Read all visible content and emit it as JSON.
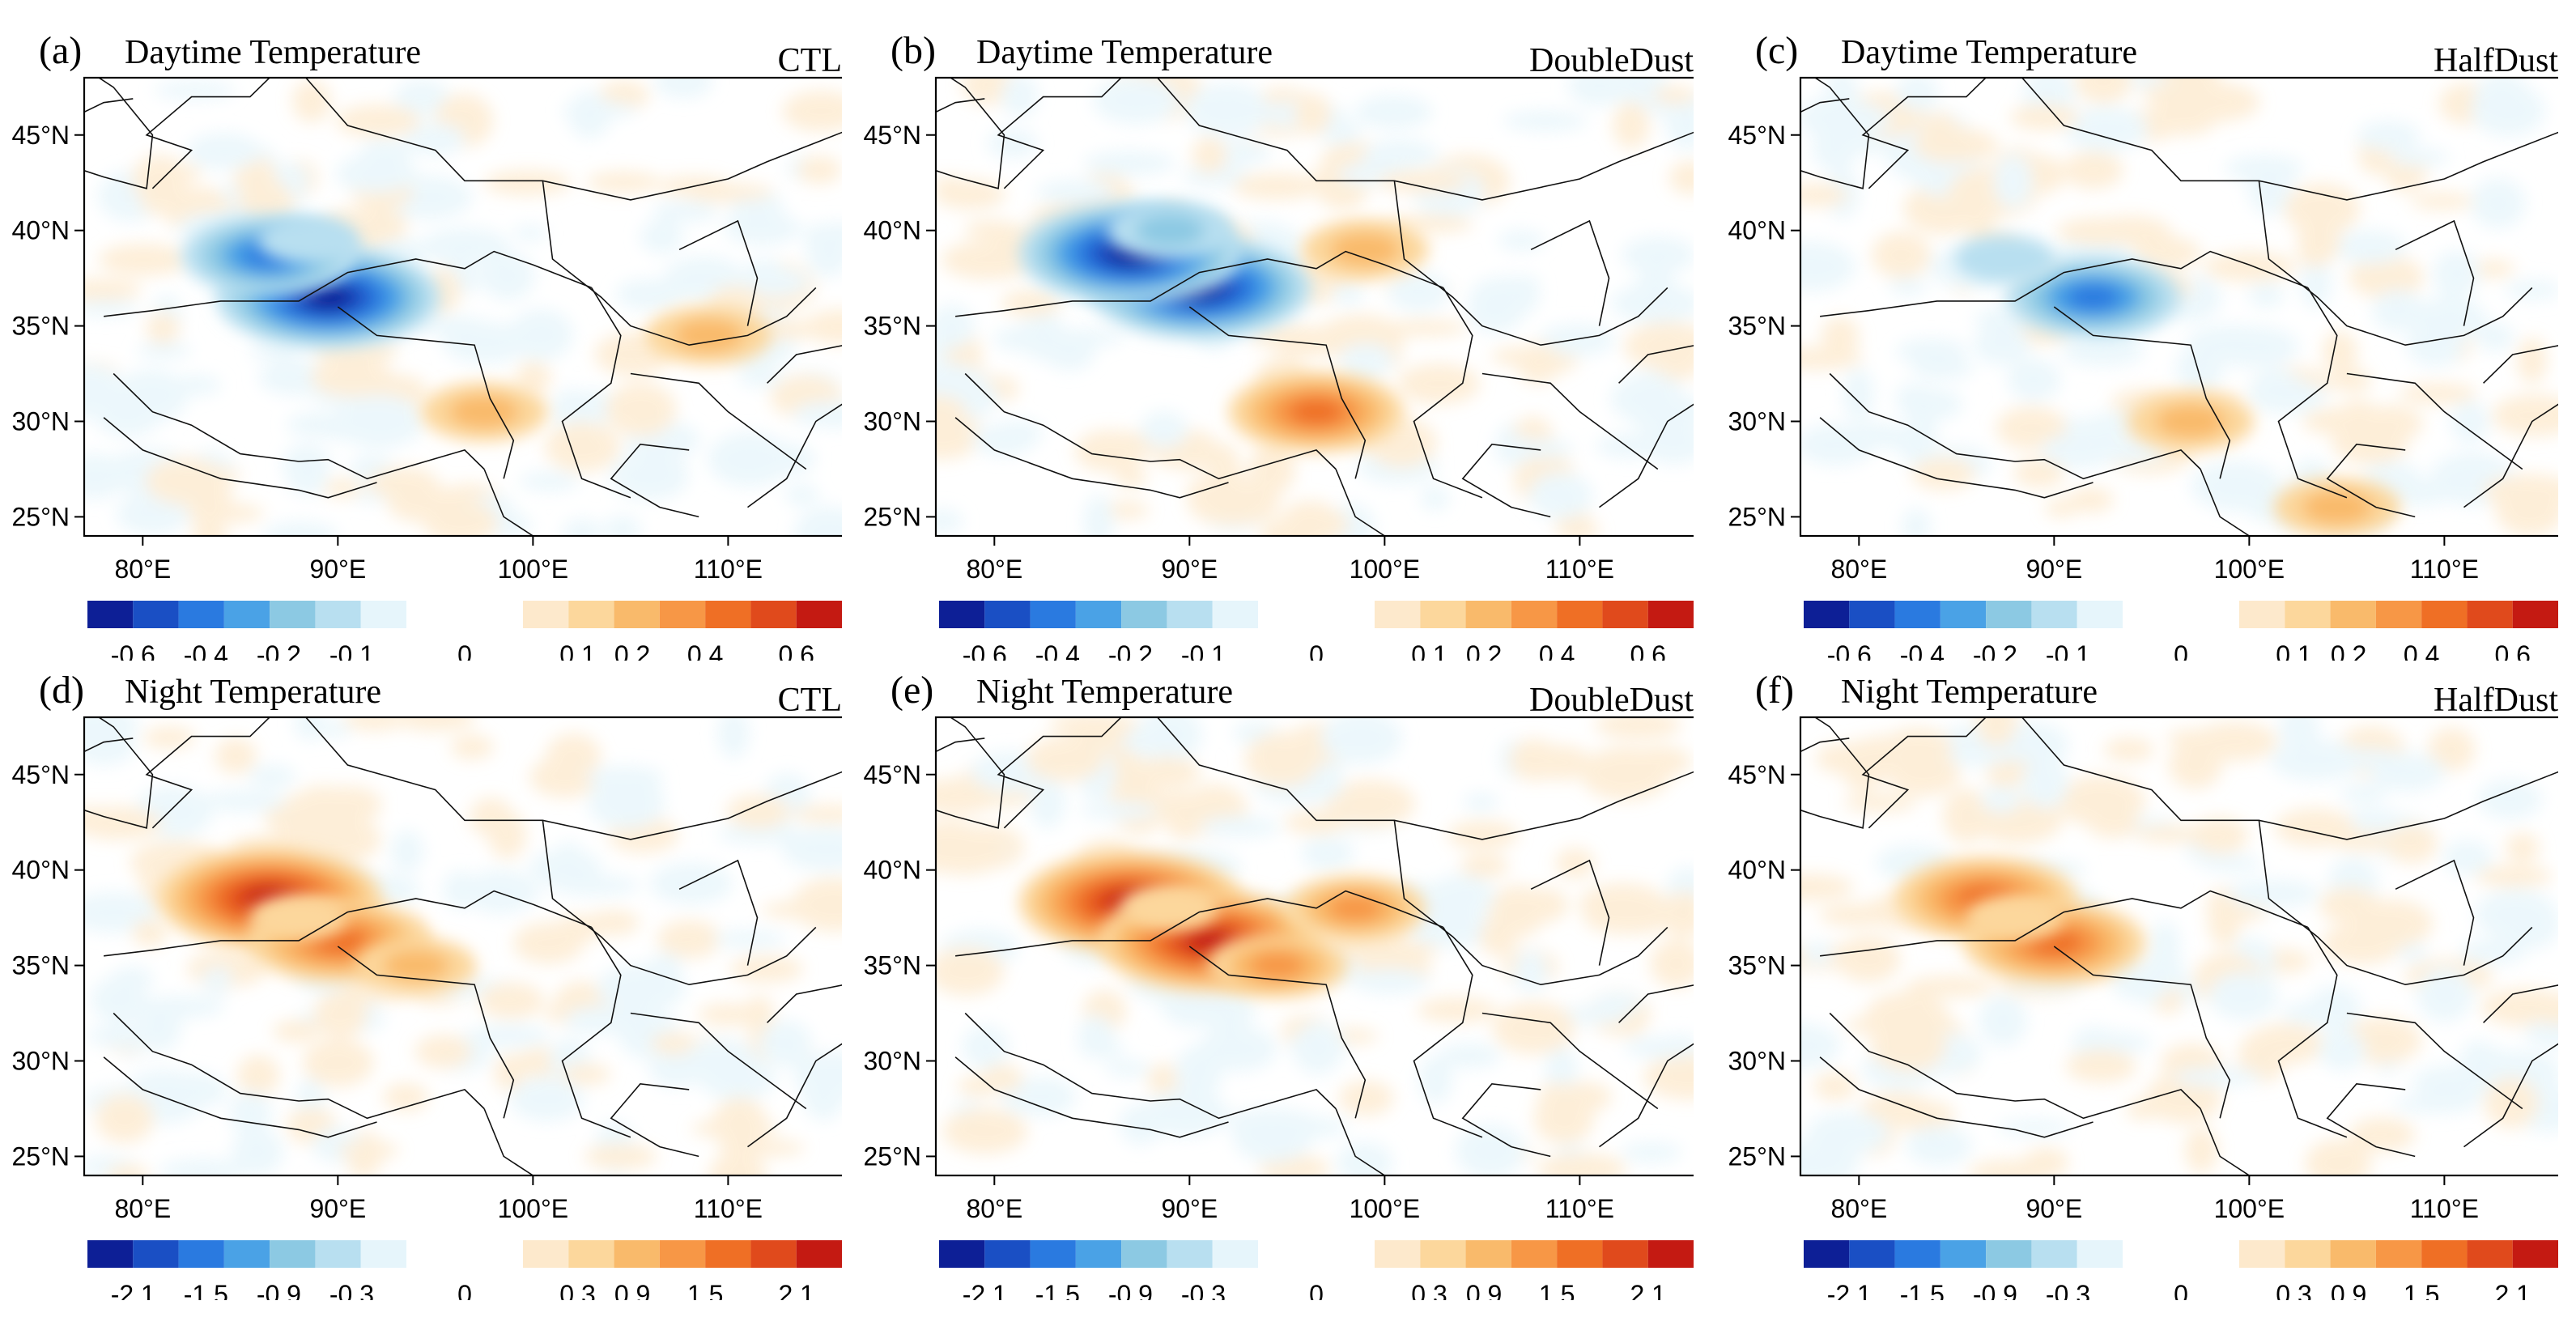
{
  "figure": {
    "panels": [
      {
        "letter": "(a)",
        "title": "Daytime Temperature",
        "experiment": "CTL"
      },
      {
        "letter": "(b)",
        "title": "Daytime Temperature",
        "experiment": "DoubleDust"
      },
      {
        "letter": "(c)",
        "title": "Daytime Temperature",
        "experiment": "HalfDust"
      },
      {
        "letter": "(d)",
        "title": "Night Temperature",
        "experiment": "CTL"
      },
      {
        "letter": "(e)",
        "title": "Night Temperature",
        "experiment": "DoubleDust"
      },
      {
        "letter": "(f)",
        "title": "Night Temperature",
        "experiment": "HalfDust"
      }
    ]
  },
  "chart_data": [
    {
      "type": "heatmap",
      "panel": "a",
      "title": "Daytime Temperature",
      "experiment": "CTL",
      "xlabel": "",
      "ylabel": "",
      "xlim": [
        77,
        116
      ],
      "ylim": [
        24,
        48
      ],
      "x_ticks": [
        "80°E",
        "90°E",
        "100°E",
        "110°E"
      ],
      "y_ticks": [
        "45°N",
        "40°N",
        "35°N",
        "30°N",
        "25°N"
      ],
      "colorbar": {
        "levels": [
          "-0.6",
          "-0.4",
          "-0.2",
          "-0.1",
          "0",
          "0.1",
          "0.2",
          "0.4",
          "0.6"
        ],
        "neg_colors": [
          "#0d1f96",
          "#1a4fc4",
          "#2a7ae0",
          "#4aa2e6",
          "#8cc9e3",
          "#b8dff0",
          "#e6f5fb"
        ],
        "pos_colors": [
          "#fde9cc",
          "#fcd79c",
          "#f9ba6b",
          "#f79746",
          "#ef6f25",
          "#e04a1c",
          "#c41a12"
        ]
      },
      "features": [
        {
          "name": "cooling center Tarim south rim",
          "lon": 89.5,
          "lat": 36.5,
          "value": -0.6
        },
        {
          "name": "cooling band west Tarim",
          "lon": 86.5,
          "lat": 38.7,
          "value": -0.4
        },
        {
          "name": "weak cooling Taklimakan",
          "lon": 88.5,
          "lat": 39.5,
          "value": -0.1
        },
        {
          "name": "warm spot Qinghai",
          "lon": 97.5,
          "lat": 30.5,
          "value": 0.2
        },
        {
          "name": "warm spot Sichuan",
          "lon": 109.0,
          "lat": 34.5,
          "value": 0.2
        }
      ]
    },
    {
      "type": "heatmap",
      "panel": "b",
      "title": "Daytime Temperature",
      "experiment": "DoubleDust",
      "xlabel": "",
      "ylabel": "",
      "xlim": [
        77,
        116
      ],
      "ylim": [
        24,
        48
      ],
      "x_ticks": [
        "80°E",
        "90°E",
        "100°E",
        "110°E"
      ],
      "y_ticks": [
        "45°N",
        "40°N",
        "35°N",
        "30°N",
        "25°N"
      ],
      "colorbar": {
        "levels": [
          "-0.6",
          "-0.4",
          "-0.2",
          "-0.1",
          "0",
          "0.1",
          "0.2",
          "0.4",
          "0.6"
        ],
        "neg_colors": [
          "#0d1f96",
          "#1a4fc4",
          "#2a7ae0",
          "#4aa2e6",
          "#8cc9e3",
          "#b8dff0",
          "#e6f5fb"
        ],
        "pos_colors": [
          "#fde9cc",
          "#fcd79c",
          "#f9ba6b",
          "#f79746",
          "#ef6f25",
          "#e04a1c",
          "#c41a12"
        ]
      },
      "features": [
        {
          "name": "cooling center Tarim south rim",
          "lon": 90.5,
          "lat": 37.0,
          "value": -0.6
        },
        {
          "name": "cooling band west Tarim",
          "lon": 87.0,
          "lat": 38.8,
          "value": -0.6
        },
        {
          "name": "weak cooling Taklimakan",
          "lon": 89.0,
          "lat": 40.0,
          "value": -0.2
        },
        {
          "name": "warm spot Qinghai",
          "lon": 96.5,
          "lat": 30.5,
          "value": 0.4
        },
        {
          "name": "warm spot Gansu",
          "lon": 99.0,
          "lat": 39.0,
          "value": 0.2
        }
      ]
    },
    {
      "type": "heatmap",
      "panel": "c",
      "title": "Daytime Temperature",
      "experiment": "HalfDust",
      "xlabel": "",
      "ylabel": "",
      "xlim": [
        77,
        116
      ],
      "ylim": [
        24,
        48
      ],
      "x_ticks": [
        "80°E",
        "90°E",
        "100°E",
        "110°E"
      ],
      "y_ticks": [
        "45°N",
        "40°N",
        "35°N",
        "30°N",
        "25°N"
      ],
      "colorbar": {
        "levels": [
          "-0.6",
          "-0.4",
          "-0.2",
          "-0.1",
          "0",
          "0.1",
          "0.2",
          "0.4",
          "0.6"
        ],
        "neg_colors": [
          "#0d1f96",
          "#1a4fc4",
          "#2a7ae0",
          "#4aa2e6",
          "#8cc9e3",
          "#b8dff0",
          "#e6f5fb"
        ],
        "pos_colors": [
          "#fde9cc",
          "#fcd79c",
          "#f9ba6b",
          "#f79746",
          "#ef6f25",
          "#e04a1c",
          "#c41a12"
        ]
      },
      "features": [
        {
          "name": "cooling center Tarim south rim",
          "lon": 92.0,
          "lat": 36.5,
          "value": -0.4
        },
        {
          "name": "weak cooling Taklimakan",
          "lon": 87.5,
          "lat": 38.5,
          "value": -0.1
        },
        {
          "name": "warm spot Sichuan",
          "lon": 104.5,
          "lat": 25.5,
          "value": 0.2
        },
        {
          "name": "warm spot Qinghai",
          "lon": 97.0,
          "lat": 30.0,
          "value": 0.2
        }
      ]
    },
    {
      "type": "heatmap",
      "panel": "d",
      "title": "Night Temperature",
      "experiment": "CTL",
      "xlabel": "",
      "ylabel": "",
      "xlim": [
        77,
        116
      ],
      "ylim": [
        24,
        48
      ],
      "x_ticks": [
        "80°E",
        "90°E",
        "100°E",
        "110°E"
      ],
      "y_ticks": [
        "45°N",
        "40°N",
        "35°N",
        "30°N",
        "25°N"
      ],
      "colorbar": {
        "levels": [
          "-2.1",
          "-1.5",
          "-0.9",
          "-0.3",
          "0",
          "0.3",
          "0.9",
          "1.5",
          "2.1"
        ],
        "neg_colors": [
          "#0d1f96",
          "#1a4fc4",
          "#2a7ae0",
          "#4aa2e6",
          "#8cc9e3",
          "#b8dff0",
          "#e6f5fb"
        ],
        "pos_colors": [
          "#fde9cc",
          "#fcd79c",
          "#f9ba6b",
          "#f79746",
          "#ef6f25",
          "#e04a1c",
          "#c41a12"
        ]
      },
      "features": [
        {
          "name": "warming center west Tarim",
          "lon": 86.5,
          "lat": 38.5,
          "value": 2.1
        },
        {
          "name": "warming band south Tarim",
          "lon": 90.0,
          "lat": 36.3,
          "value": 1.5
        },
        {
          "name": "warm halo Taklimakan",
          "lon": 88.0,
          "lat": 37.5,
          "value": 0.3
        },
        {
          "name": "warm spot Qinghai",
          "lon": 94.0,
          "lat": 35.0,
          "value": 0.6
        }
      ]
    },
    {
      "type": "heatmap",
      "panel": "e",
      "title": "Night Temperature",
      "experiment": "DoubleDust",
      "xlabel": "",
      "ylabel": "",
      "xlim": [
        77,
        116
      ],
      "ylim": [
        24,
        48
      ],
      "x_ticks": [
        "80°E",
        "90°E",
        "100°E",
        "110°E"
      ],
      "y_ticks": [
        "45°N",
        "40°N",
        "35°N",
        "30°N",
        "25°N"
      ],
      "colorbar": {
        "levels": [
          "-2.1",
          "-1.5",
          "-0.9",
          "-0.3",
          "0",
          "0.3",
          "0.9",
          "1.5",
          "2.1"
        ],
        "neg_colors": [
          "#0d1f96",
          "#1a4fc4",
          "#2a7ae0",
          "#4aa2e6",
          "#8cc9e3",
          "#b8dff0",
          "#e6f5fb"
        ],
        "pos_colors": [
          "#fde9cc",
          "#fcd79c",
          "#f9ba6b",
          "#f79746",
          "#ef6f25",
          "#e04a1c",
          "#c41a12"
        ]
      },
      "features": [
        {
          "name": "warming center west Tarim",
          "lon": 87.0,
          "lat": 38.3,
          "value": 2.1
        },
        {
          "name": "warming band south Tarim",
          "lon": 91.0,
          "lat": 36.3,
          "value": 2.1
        },
        {
          "name": "warm halo Taklimakan",
          "lon": 89.0,
          "lat": 38.0,
          "value": 0.3
        },
        {
          "name": "warm spot Qinghai",
          "lon": 94.5,
          "lat": 35.0,
          "value": 0.9
        },
        {
          "name": "warm tongue Gansu",
          "lon": 98.5,
          "lat": 38.0,
          "value": 0.9
        }
      ]
    },
    {
      "type": "heatmap",
      "panel": "f",
      "title": "Night Temperature",
      "experiment": "HalfDust",
      "xlabel": "",
      "ylabel": "",
      "xlim": [
        77,
        116
      ],
      "ylim": [
        24,
        48
      ],
      "x_ticks": [
        "80°E",
        "90°E",
        "100°E",
        "110°E"
      ],
      "y_ticks": [
        "45°N",
        "40°N",
        "35°N",
        "30°N",
        "25°N"
      ],
      "colorbar": {
        "levels": [
          "-2.1",
          "-1.5",
          "-0.9",
          "-0.3",
          "0",
          "0.3",
          "0.9",
          "1.5",
          "2.1"
        ],
        "neg_colors": [
          "#0d1f96",
          "#1a4fc4",
          "#2a7ae0",
          "#4aa2e6",
          "#8cc9e3",
          "#b8dff0",
          "#e6f5fb"
        ],
        "pos_colors": [
          "#fde9cc",
          "#fcd79c",
          "#f9ba6b",
          "#f79746",
          "#ef6f25",
          "#e04a1c",
          "#c41a12"
        ]
      },
      "features": [
        {
          "name": "warming center west Tarim",
          "lon": 86.5,
          "lat": 38.5,
          "value": 1.5
        },
        {
          "name": "warming band south Tarim",
          "lon": 90.0,
          "lat": 36.2,
          "value": 1.5
        },
        {
          "name": "warm halo Taklimakan",
          "lon": 88.0,
          "lat": 37.5,
          "value": 0.3
        }
      ]
    }
  ]
}
